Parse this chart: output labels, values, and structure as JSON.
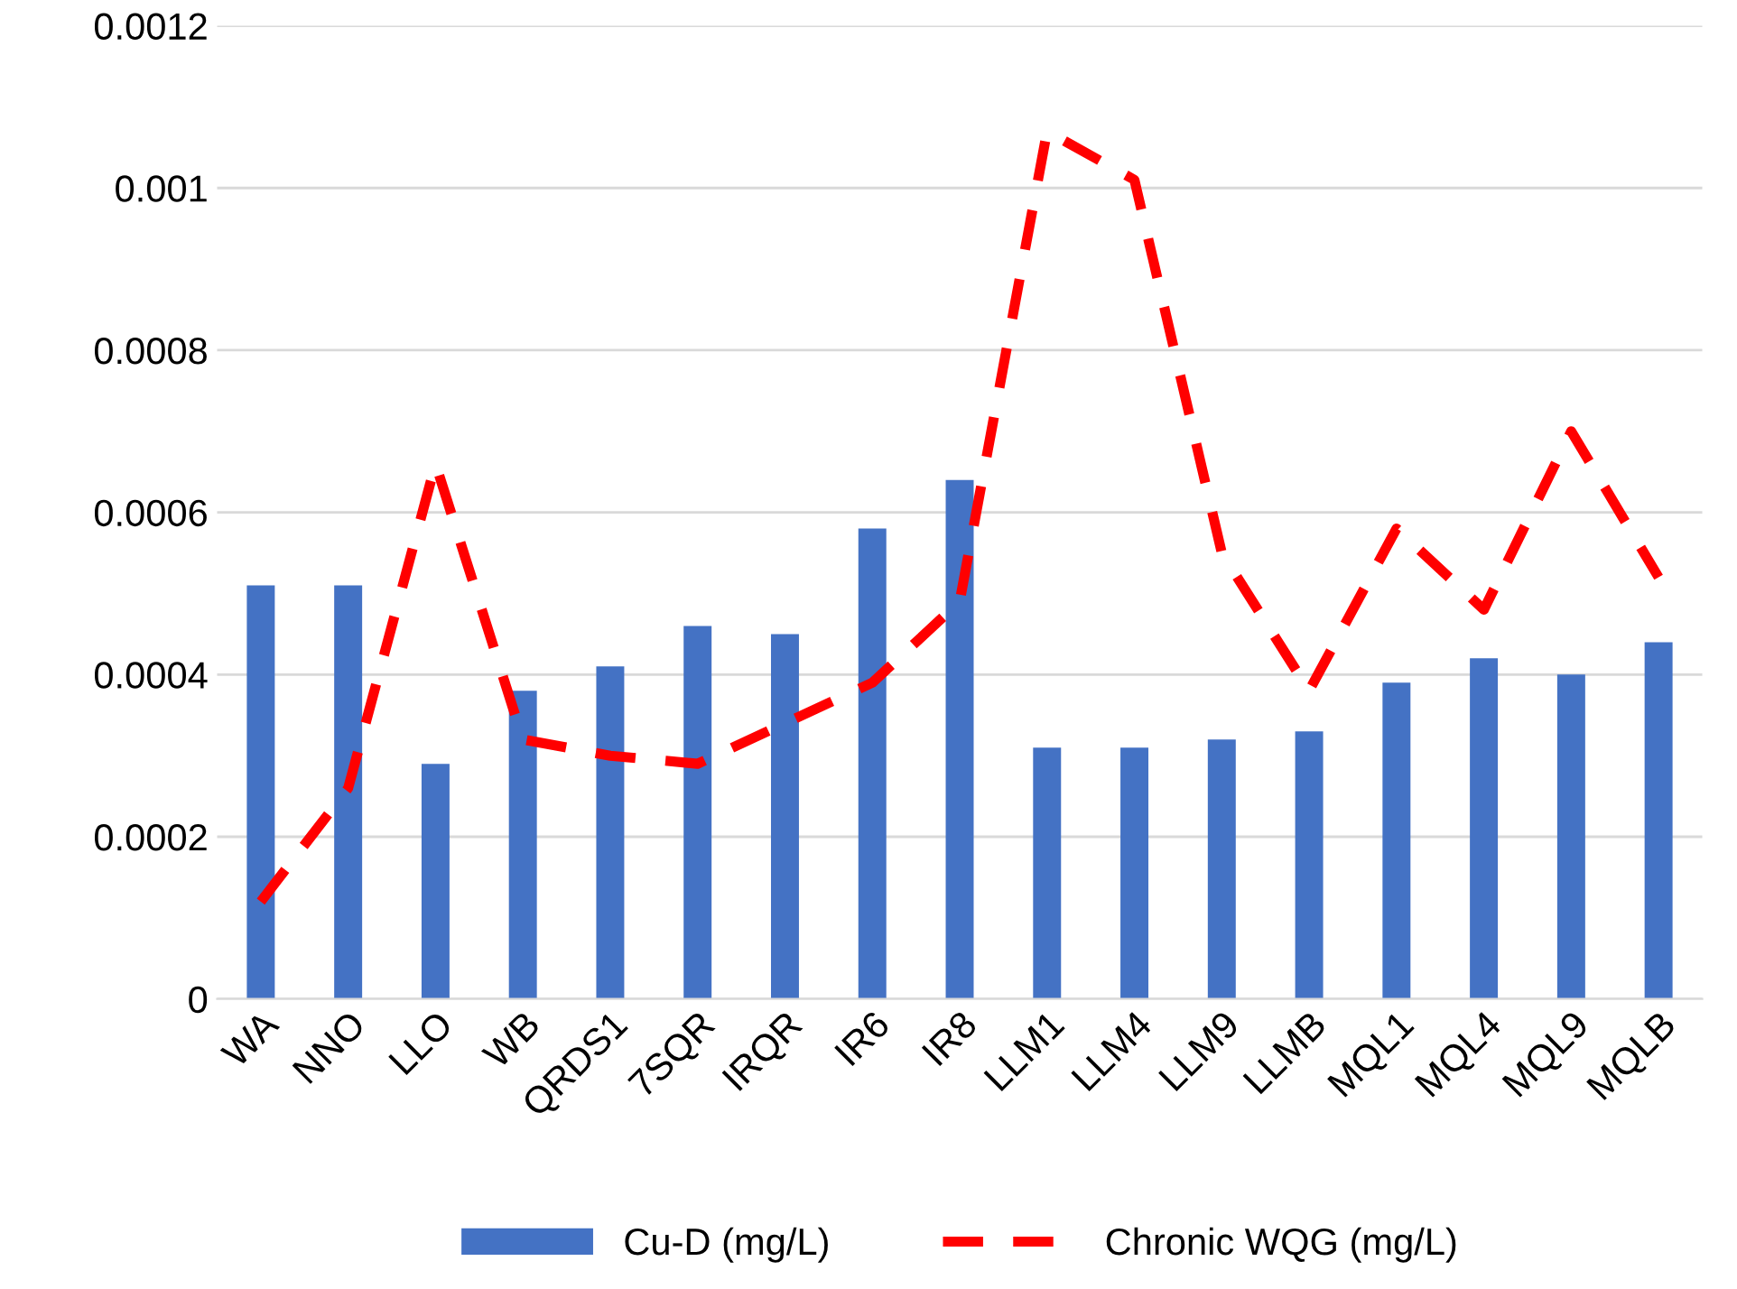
{
  "chart_data": {
    "type": "bar",
    "categories": [
      "WA",
      "NNO",
      "LLO",
      "WB",
      "QRDS1",
      "7SQR",
      "IRQR",
      "IR6",
      "IR8",
      "LLM1",
      "LLM4",
      "LLM9",
      "LLMB",
      "MQL1",
      "MQL4",
      "MQL9",
      "MQLB"
    ],
    "series": [
      {
        "name": "Cu-D (mg/L)",
        "color": "#4472c4",
        "values": [
          0.00051,
          0.00051,
          0.00029,
          0.00038,
          0.00041,
          0.00046,
          0.00045,
          0.00058,
          0.00064,
          0.00031,
          0.00031,
          0.00032,
          0.00033,
          0.00039,
          0.00042,
          0.0004,
          0.00044
        ]
      },
      {
        "name": "Chronic WQG (mg/L)",
        "type": "line",
        "color": "#ff0000",
        "line_style": "dashed",
        "values": [
          0.00012,
          0.00026,
          0.00066,
          0.00032,
          0.0003,
          0.00029,
          0.00034,
          0.00039,
          0.00049,
          0.00107,
          0.00101,
          0.00055,
          0.00038,
          0.00058,
          0.00048,
          0.0007,
          0.00052
        ]
      }
    ],
    "ylim": [
      0,
      0.0012
    ],
    "yticks": [
      0,
      0.0002,
      0.0004,
      0.0006,
      0.0008,
      0.001,
      0.0012
    ],
    "grid": "y",
    "legend": "bottom",
    "marker": "none"
  }
}
